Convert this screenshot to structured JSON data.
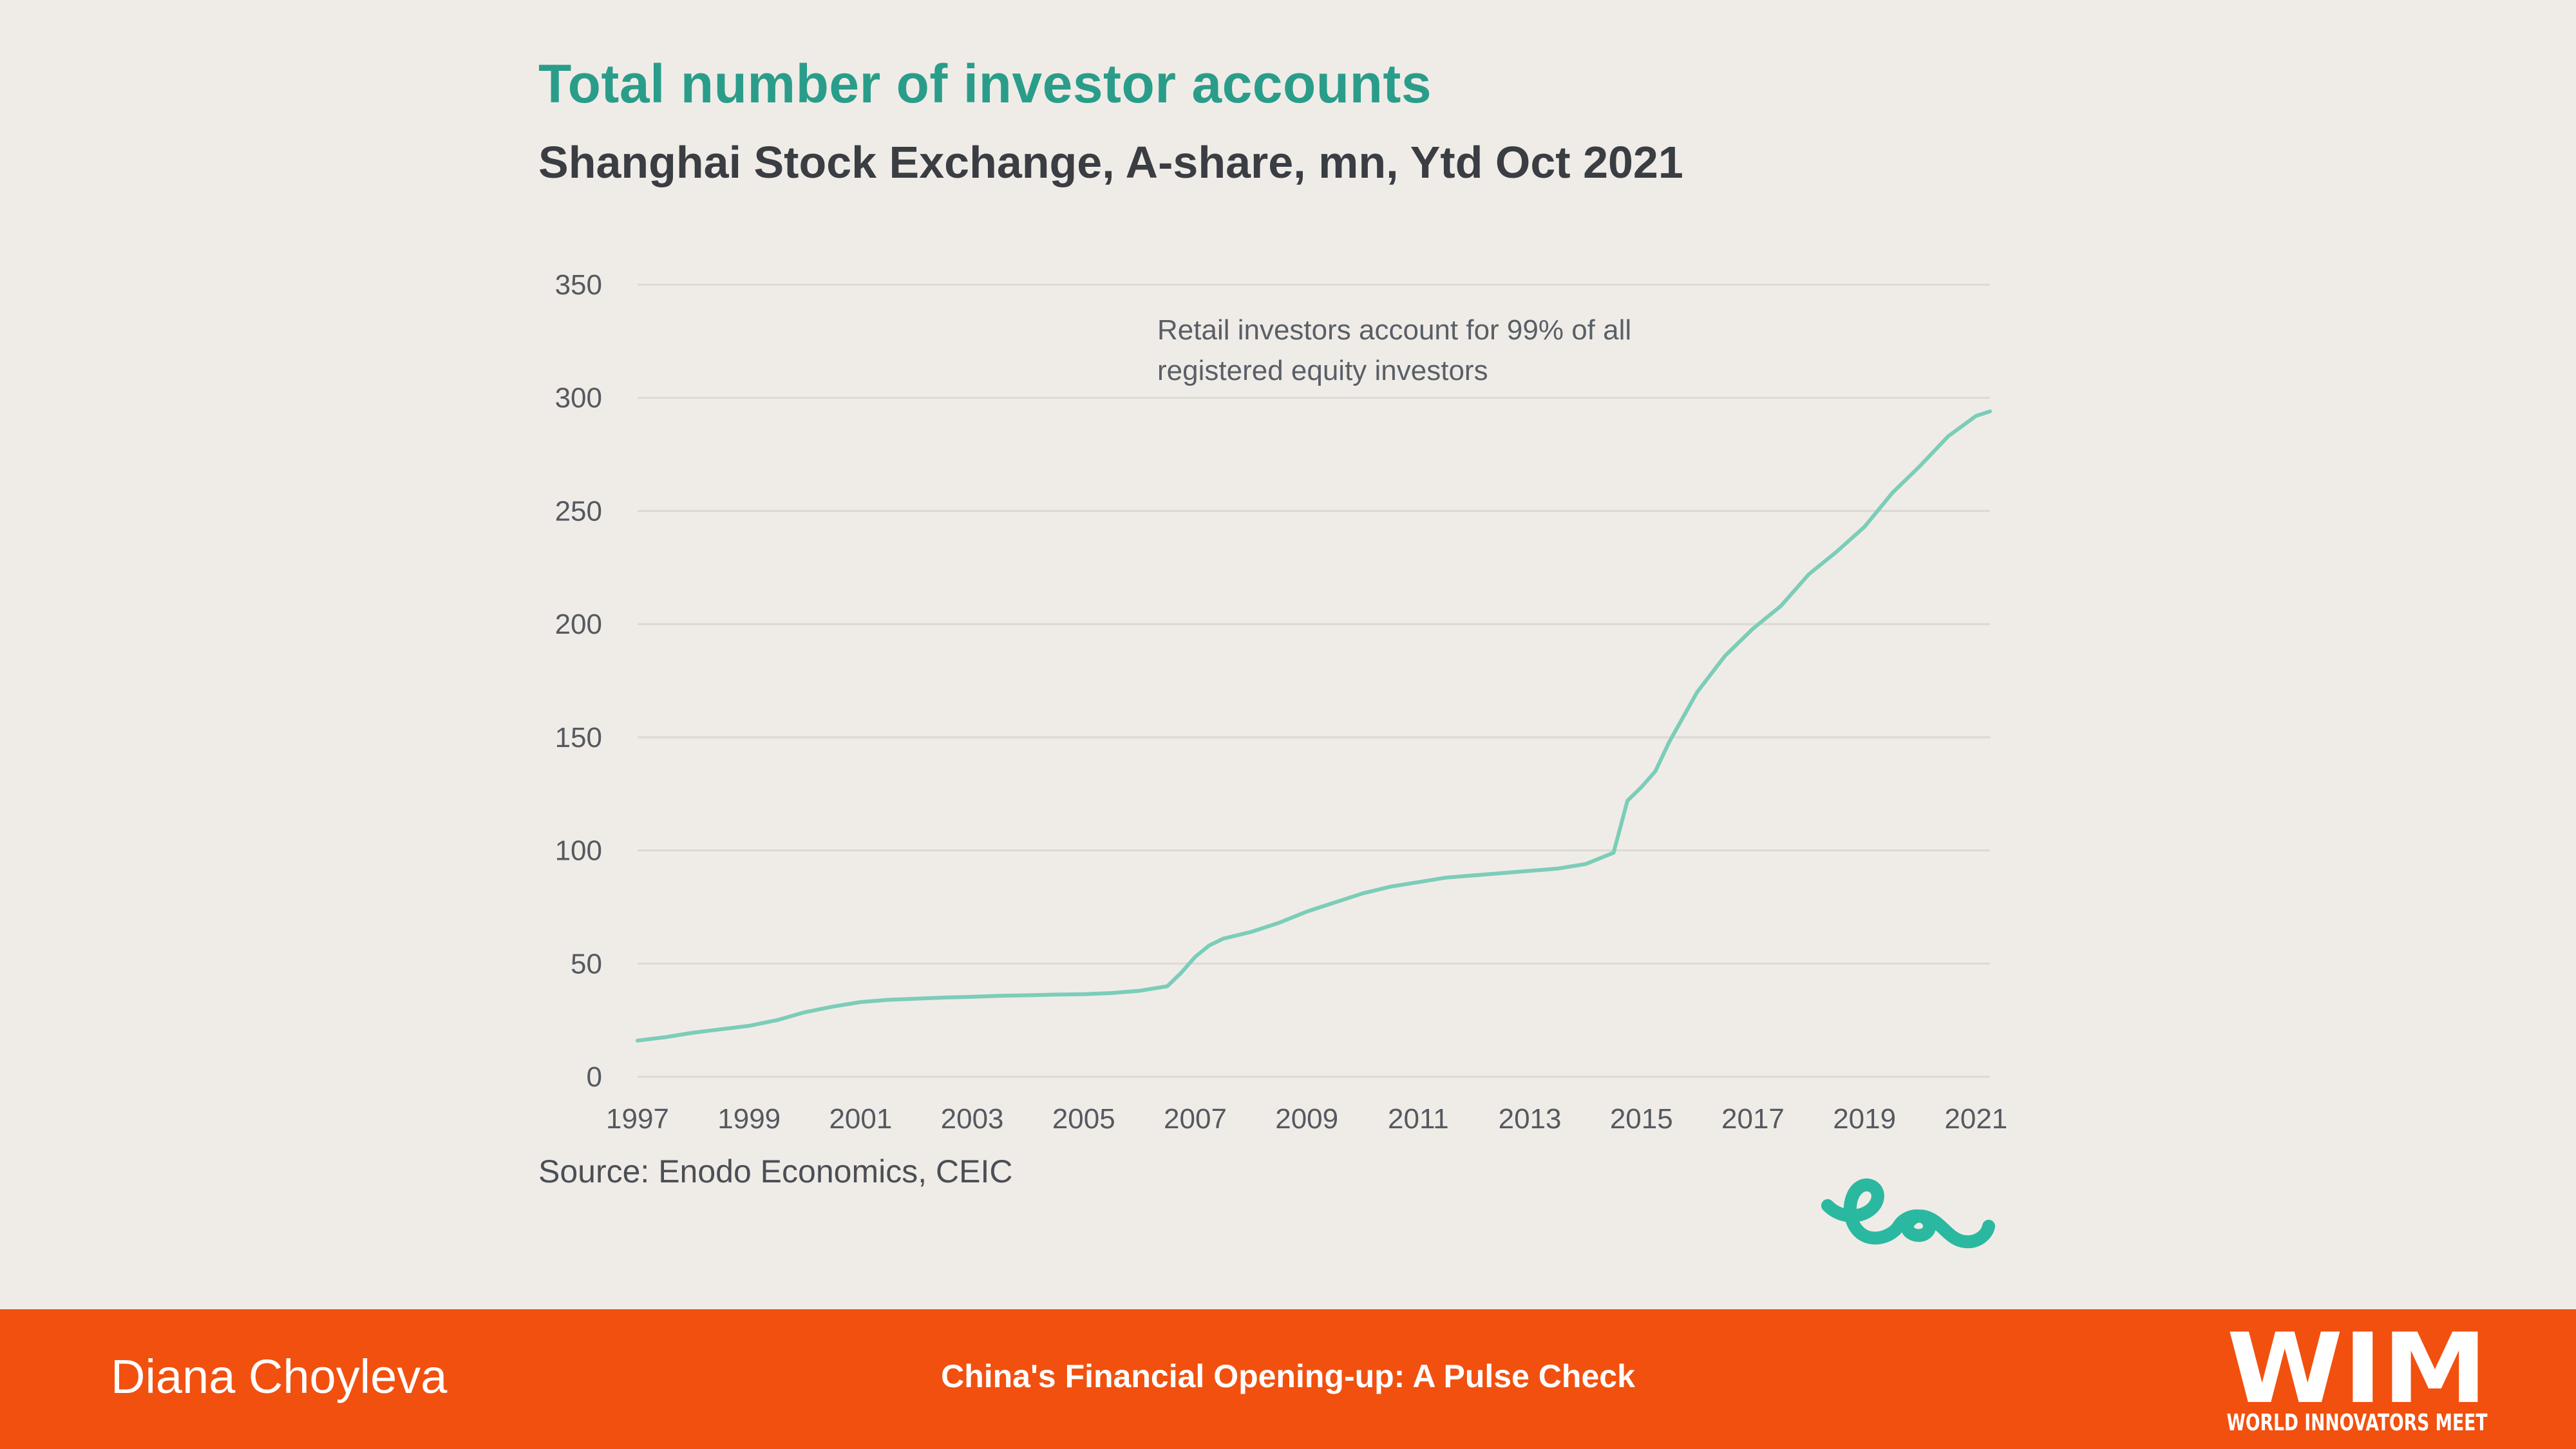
{
  "header": {
    "title": "Total number of investor accounts",
    "subtitle": "Shanghai Stock Exchange, A-share, mn, Ytd Oct 2021"
  },
  "chart_data": {
    "type": "line",
    "title": "Total number of investor accounts",
    "subtitle": "Shanghai Stock Exchange, A-share, mn, Ytd Oct 2021",
    "xlabel": "",
    "ylabel": "",
    "xlim": [
      1997,
      2021.25
    ],
    "ylim": [
      0,
      350
    ],
    "yticks": [
      0,
      50,
      100,
      150,
      200,
      250,
      300,
      350
    ],
    "xticks": [
      1997,
      1999,
      2001,
      2003,
      2005,
      2007,
      2009,
      2011,
      2013,
      2015,
      2017,
      2019,
      2021
    ],
    "grid": true,
    "legend": "none",
    "line_color": "#7ccdb8",
    "series": [
      {
        "x": [
          1997.0,
          1997.5,
          1998.0,
          1998.5,
          1999.0,
          1999.5,
          2000.0,
          2000.5,
          2001.0,
          2001.5,
          2002.0,
          2002.5,
          2003.0,
          2003.5,
          2004.0,
          2004.5,
          2005.0,
          2005.5,
          2006.0,
          2006.5,
          2006.75,
          2007.0,
          2007.25,
          2007.5,
          2008.0,
          2008.5,
          2009.0,
          2009.5,
          2010.0,
          2010.5,
          2011.0,
          2011.5,
          2012.0,
          2012.5,
          2013.0,
          2013.5,
          2014.0,
          2014.5,
          2014.75,
          2015.0,
          2015.25,
          2015.5,
          2016.0,
          2016.5,
          2017.0,
          2017.5,
          2018.0,
          2018.5,
          2019.0,
          2019.5,
          2020.0,
          2020.5,
          2021.0,
          2021.25
        ],
        "y": [
          16,
          17.5,
          19.5,
          21,
          22.5,
          25,
          28.5,
          31,
          33,
          34,
          34.5,
          35,
          35.3,
          35.8,
          36,
          36.3,
          36.5,
          37,
          38,
          40,
          46,
          53,
          58,
          61,
          64,
          68,
          73,
          77,
          81,
          84,
          86,
          88,
          89,
          90,
          91,
          92,
          94,
          99,
          122,
          128,
          135,
          148,
          170,
          186,
          198,
          208,
          222,
          232,
          243,
          258,
          270,
          283,
          292,
          294
        ]
      }
    ],
    "annotations": [
      "Retail investors account for 99% of all",
      "registered equity investors"
    ],
    "source": "Source: Enodo Economics, CEIC"
  },
  "footer": {
    "presenter": "Diana Choyleva",
    "talk_title": "China's Financial Opening-up: A Pulse Check",
    "logo_text": "WIM",
    "logo_tagline": "WORLD INNOVATORS MEET",
    "bar_color": "#f2500f"
  },
  "brand": {
    "logo_icon": "enodo-ee-logo-icon",
    "accent_color": "#2bb8a0"
  }
}
